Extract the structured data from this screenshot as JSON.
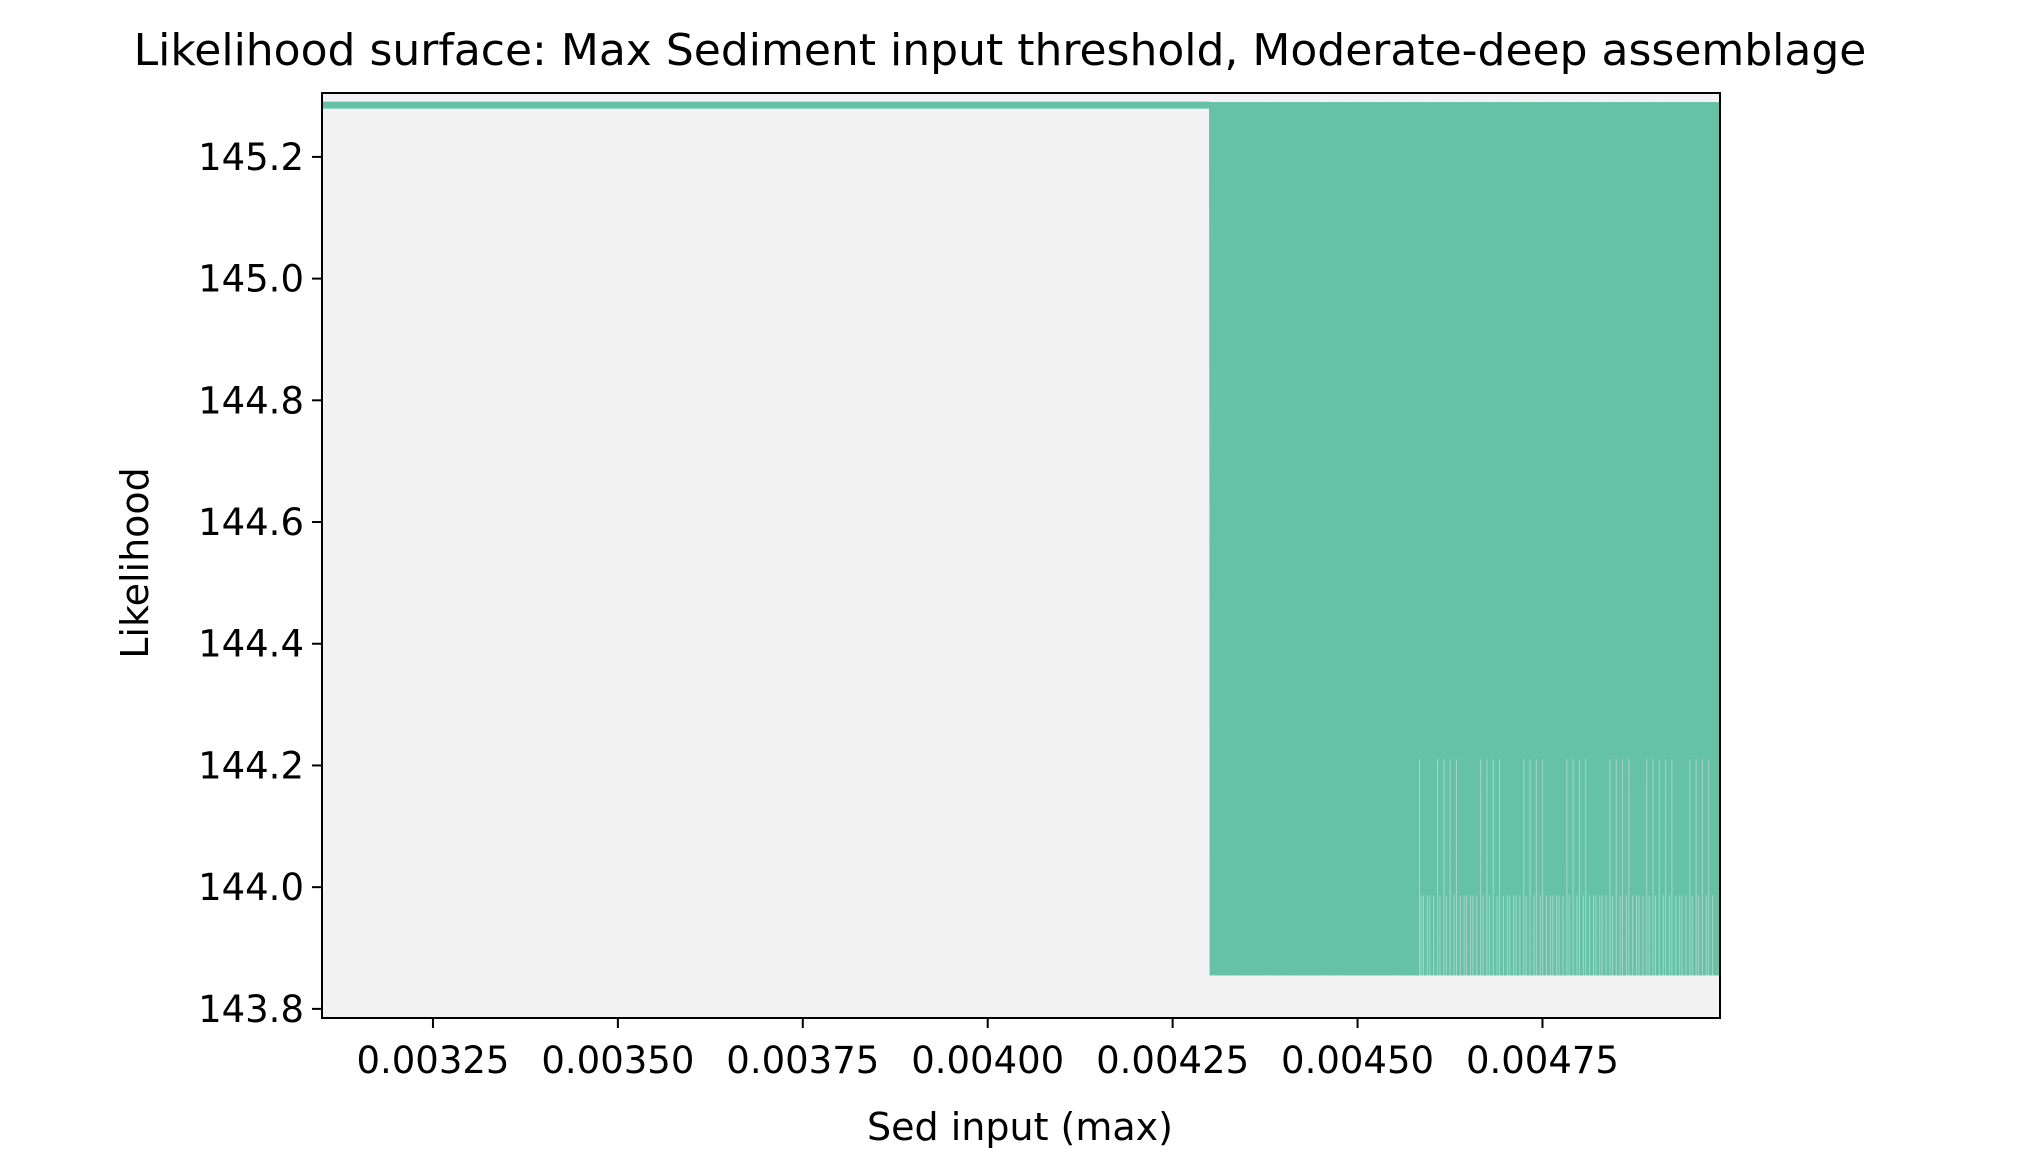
{
  "chart_data": {
    "type": "line",
    "title": "Likelihood surface: Max Sediment input threshold, Moderate-deep assemblage",
    "xlabel": "Sed input (max)",
    "ylabel": "Likelihood",
    "xlim": [
      0.0031,
      0.00499
    ],
    "ylim": [
      143.785,
      145.305
    ],
    "xticks": [
      0.00325,
      0.0035,
      0.00375,
      0.004,
      0.00425,
      0.0045,
      0.00475
    ],
    "xtick_labels": [
      "0.00325",
      "0.00350",
      "0.00375",
      "0.00400",
      "0.00425",
      "0.00450",
      "0.00475"
    ],
    "yticks": [
      143.8,
      144.0,
      144.2,
      144.4,
      144.6,
      144.8,
      145.0,
      145.2
    ],
    "ytick_labels": [
      "143.8",
      "144.0",
      "144.2",
      "144.4",
      "144.6",
      "144.8",
      "145.0",
      "145.2"
    ],
    "grid": false,
    "colors": {
      "series": "#66c2a5",
      "plot_background": "#f2f2f2"
    },
    "series": [
      {
        "segments": [
          {
            "x_range": [
              0.0031,
              0.0043
            ],
            "likelihood": 145.285,
            "behavior": "constant"
          },
          {
            "x_range": [
              0.0043,
              0.00499
            ],
            "likelihood_range": [
              143.855,
              145.29
            ],
            "intermediate_level": 144.21,
            "behavior": "rapid oscillation"
          }
        ]
      }
    ]
  }
}
